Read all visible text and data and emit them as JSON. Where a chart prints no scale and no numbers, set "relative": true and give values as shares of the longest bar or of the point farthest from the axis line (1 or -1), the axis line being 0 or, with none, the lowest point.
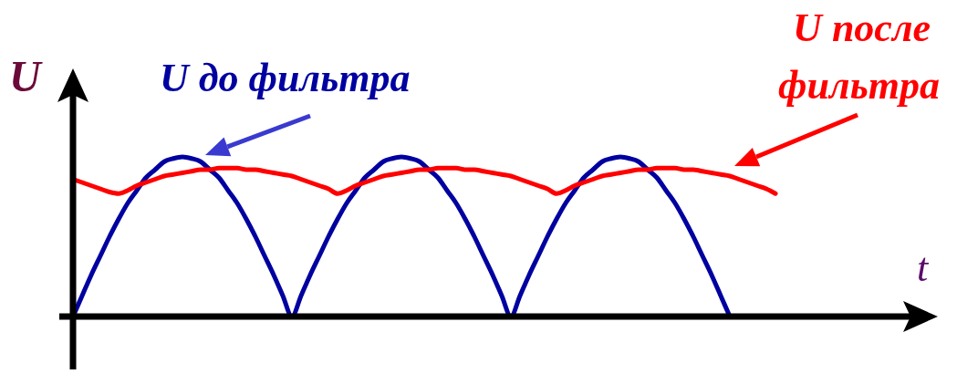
{
  "chart_data": {
    "type": "line",
    "xlabel": "t",
    "ylabel": "U",
    "relative": true,
    "categories": [
      null,
      null,
      null,
      null,
      null,
      null,
      null,
      null,
      null,
      null,
      null,
      null,
      null,
      null,
      null,
      null,
      null,
      null,
      null,
      null,
      null,
      null,
      null,
      null,
      null,
      null,
      null,
      null,
      null,
      null,
      null,
      null,
      null,
      null,
      null,
      null,
      null,
      null,
      null,
      null,
      null,
      null,
      null,
      null,
      null,
      null,
      null,
      null,
      null,
      null,
      null,
      null,
      null,
      null,
      null,
      null,
      null,
      null,
      null,
      null,
      null,
      null,
      null,
      null,
      null,
      null,
      null,
      null,
      null,
      null,
      null,
      null,
      null,
      null,
      null,
      null,
      null,
      null
    ],
    "series": [
      {
        "name": "U до фильтра",
        "color": "#0000a0",
        "values": [
          0,
          0.13,
          0.26,
          0.38,
          0.5,
          0.61,
          0.71,
          0.79,
          0.87,
          0.92,
          0.97,
          0.99,
          1,
          0.99,
          0.97,
          0.92,
          0.87,
          0.79,
          0.71,
          0.61,
          0.5,
          0.38,
          0.26,
          0.13,
          0,
          0.13,
          0.26,
          0.38,
          0.5,
          0.61,
          0.71,
          0.79,
          0.87,
          0.92,
          0.97,
          0.99,
          1,
          0.99,
          0.97,
          0.92,
          0.87,
          0.79,
          0.71,
          0.61,
          0.5,
          0.38,
          0.26,
          0.13,
          0,
          0.13,
          0.26,
          0.38,
          0.5,
          0.61,
          0.71,
          0.79,
          0.87,
          0.92,
          0.97,
          0.99,
          1,
          0.99,
          0.97,
          0.92,
          0.87,
          0.79,
          0.71,
          0.61,
          0.5,
          0.38,
          0.26,
          0.13,
          0,
          null,
          null,
          null,
          null,
          null
        ]
      },
      {
        "name": "U после фильтра",
        "color": "#ff0000",
        "values": [
          0.86,
          0.84,
          0.82,
          0.8,
          0.78,
          0.77,
          0.79,
          0.82,
          0.84,
          0.86,
          0.88,
          0.89,
          0.9,
          0.91,
          0.92,
          0.92,
          0.93,
          0.93,
          0.93,
          0.92,
          0.92,
          0.91,
          0.9,
          0.89,
          0.88,
          0.86,
          0.84,
          0.82,
          0.8,
          0.77,
          0.79,
          0.82,
          0.84,
          0.86,
          0.88,
          0.89,
          0.9,
          0.91,
          0.92,
          0.92,
          0.93,
          0.93,
          0.93,
          0.92,
          0.92,
          0.91,
          0.9,
          0.89,
          0.88,
          0.86,
          0.84,
          0.82,
          0.8,
          0.77,
          0.79,
          0.82,
          0.84,
          0.86,
          0.88,
          0.89,
          0.9,
          0.91,
          0.92,
          0.92,
          0.93,
          0.93,
          0.93,
          0.92,
          0.92,
          0.91,
          0.9,
          0.89,
          0.88,
          0.86,
          0.84,
          0.82,
          0.8,
          0.77
        ]
      }
    ]
  }
}
